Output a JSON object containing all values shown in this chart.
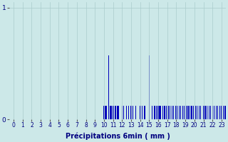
{
  "xlabel": "Précipitations 6min ( mm )",
  "background_color": "#cce8e8",
  "bar_color": "#0000bb",
  "grid_color": "#aacccc",
  "yticks": [
    0,
    1
  ],
  "xticks": [
    0,
    1,
    2,
    3,
    4,
    5,
    6,
    7,
    8,
    9,
    10,
    11,
    12,
    13,
    14,
    15,
    16,
    17,
    18,
    19,
    20,
    21,
    22,
    23
  ],
  "xlim": [
    -0.5,
    23.5
  ],
  "ylim": [
    0,
    1.05
  ],
  "bar_data": [
    [
      10.0,
      0.12
    ],
    [
      10.1,
      0.12
    ],
    [
      10.2,
      0.12
    ],
    [
      10.3,
      0.12
    ],
    [
      10.5,
      0.57
    ],
    [
      10.65,
      0.12
    ],
    [
      10.75,
      0.12
    ],
    [
      10.85,
      0.12
    ],
    [
      11.0,
      0.12
    ],
    [
      11.1,
      0.12
    ],
    [
      11.2,
      0.12
    ],
    [
      11.3,
      0.12
    ],
    [
      11.5,
      0.12
    ],
    [
      11.65,
      0.12
    ],
    [
      12.0,
      0.12
    ],
    [
      12.2,
      0.12
    ],
    [
      12.5,
      0.12
    ],
    [
      12.7,
      0.12
    ],
    [
      13.0,
      0.12
    ],
    [
      13.2,
      0.12
    ],
    [
      13.5,
      0.12
    ],
    [
      14.0,
      0.12
    ],
    [
      14.2,
      0.12
    ],
    [
      14.5,
      0.12
    ],
    [
      15.0,
      0.57
    ],
    [
      15.3,
      0.12
    ],
    [
      15.6,
      0.12
    ],
    [
      15.8,
      0.12
    ],
    [
      16.0,
      0.12
    ],
    [
      16.15,
      0.12
    ],
    [
      16.3,
      0.12
    ],
    [
      16.5,
      0.12
    ],
    [
      16.7,
      0.12
    ],
    [
      16.9,
      0.12
    ],
    [
      17.1,
      0.12
    ],
    [
      17.3,
      0.12
    ],
    [
      17.5,
      0.12
    ],
    [
      17.7,
      0.12
    ],
    [
      17.9,
      0.12
    ],
    [
      18.1,
      0.12
    ],
    [
      18.3,
      0.12
    ],
    [
      18.5,
      0.12
    ],
    [
      18.7,
      0.12
    ],
    [
      18.9,
      0.12
    ],
    [
      19.1,
      0.12
    ],
    [
      19.3,
      0.12
    ],
    [
      19.5,
      0.12
    ],
    [
      19.7,
      0.12
    ],
    [
      19.9,
      0.12
    ],
    [
      20.1,
      0.12
    ],
    [
      20.3,
      0.12
    ],
    [
      20.5,
      0.12
    ],
    [
      20.7,
      0.12
    ],
    [
      21.0,
      0.12
    ],
    [
      21.2,
      0.12
    ],
    [
      21.4,
      0.12
    ],
    [
      21.6,
      0.12
    ],
    [
      21.8,
      0.12
    ],
    [
      22.0,
      0.12
    ],
    [
      22.2,
      0.12
    ],
    [
      22.4,
      0.12
    ],
    [
      22.6,
      0.12
    ],
    [
      22.8,
      0.12
    ],
    [
      23.0,
      0.12
    ],
    [
      23.2,
      0.12
    ],
    [
      23.4,
      0.12
    ],
    [
      23.6,
      0.12
    ],
    [
      23.8,
      0.12
    ]
  ]
}
